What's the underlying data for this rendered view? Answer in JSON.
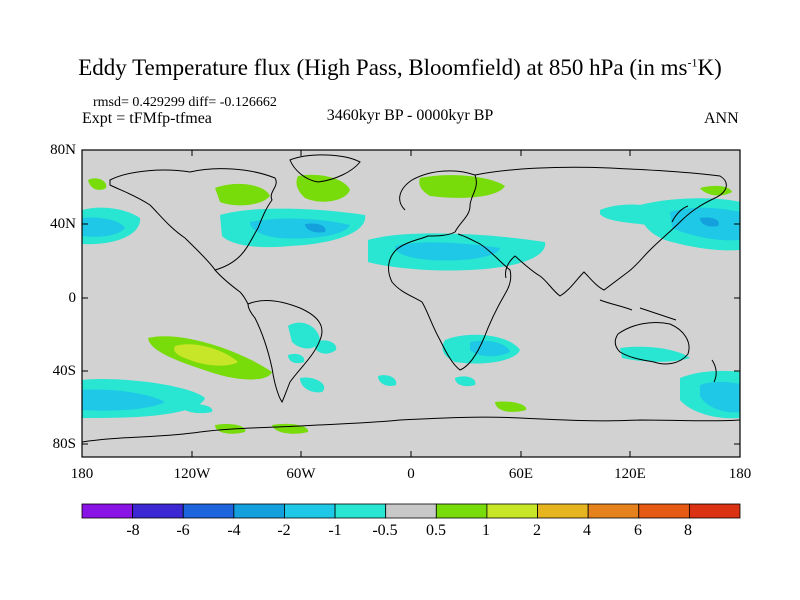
{
  "title": {
    "prefix": "Eddy Temperature flux (High Pass, Bloomfield) at 850 hPa (in ms",
    "sup": "-1",
    "suffix": "K)"
  },
  "stats": "rmsd= 0.429299 diff= -0.126662",
  "expt": "Expt = tFMfp-tfmea",
  "period": "3460kyr BP - 0000kyr BP",
  "season": "ANN",
  "y_ticks": [
    "80N",
    "40N",
    "0",
    "40S",
    "80S"
  ],
  "x_ticks": [
    "180",
    "120W",
    "60W",
    "0",
    "60E",
    "120E",
    "180"
  ],
  "colorbar": {
    "labels": [
      "-8",
      "-6",
      "-4",
      "-2",
      "-1",
      "-0.5",
      "0.5",
      "1",
      "2",
      "4",
      "6",
      "8"
    ],
    "colors": [
      "#8a14e6",
      "#3c28d2",
      "#1e64dc",
      "#14a0dc",
      "#1ec8e6",
      "#28e6d2",
      "#c8c8c8",
      "#78dc0a",
      "#c8e628",
      "#e6b41e",
      "#e6821e",
      "#e65a14",
      "#dc3214"
    ]
  },
  "colors": {
    "background": "#d2d2d2",
    "coast": "#000000"
  }
}
